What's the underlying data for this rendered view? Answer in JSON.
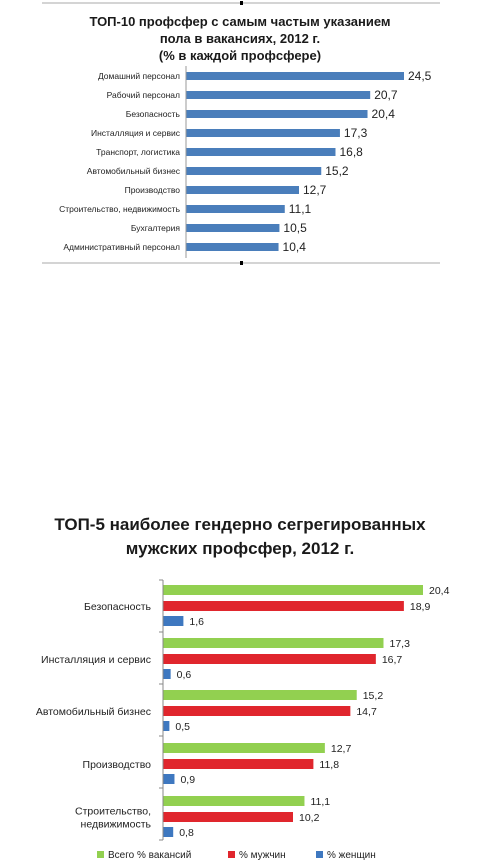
{
  "chart_data": [
    {
      "type": "bar",
      "orientation": "horizontal",
      "title_lines": [
        "ТОП-10 профсфер с самым частым указанием",
        "пола в вакансиях, 2012 г.",
        "(% в каждой профсфере)"
      ],
      "categories": [
        "Домашний персонал",
        "Рабочий персонал",
        "Безопасность",
        "Инсталляция и сервис",
        "Транспорт, логистика",
        "Автомобильный бизнес",
        "Производство",
        "Строительство, недвижимость",
        "Бухгалтерия",
        "Административный персонал"
      ],
      "values": [
        24.5,
        20.7,
        20.4,
        17.3,
        16.8,
        15.2,
        12.7,
        11.1,
        10.5,
        10.4
      ],
      "labels": [
        "24,5",
        "20,7",
        "20,4",
        "17,3",
        "16,8",
        "15,2",
        "12,7",
        "11,1",
        "10,5",
        "10,4"
      ],
      "color": "#4a7ebb",
      "xlim": [
        0,
        24.5
      ],
      "grid": false
    },
    {
      "type": "bar",
      "orientation": "horizontal",
      "title_lines": [
        "ТОП-5 наиболее гендерно сегрегированных",
        "мужских профсфер, 2012 г."
      ],
      "categories": [
        [
          "Безопасность"
        ],
        [
          "Инсталляция и сервис"
        ],
        [
          "Автомобильный бизнес"
        ],
        [
          "Производство"
        ],
        [
          "Строительство,",
          "недвижимость"
        ]
      ],
      "series": [
        {
          "name": "Всего % вакансий",
          "color": "#92d050",
          "values": [
            20.4,
            17.3,
            15.2,
            12.7,
            11.1
          ],
          "labels": [
            "20,4",
            "17,3",
            "15,2",
            "12,7",
            "11,1"
          ]
        },
        {
          "name": "% мужчин",
          "color": "#e0262d",
          "values": [
            18.9,
            16.7,
            14.7,
            11.8,
            10.2
          ],
          "labels": [
            "18,9",
            "16,7",
            "14,7",
            "11,8",
            "10,2"
          ]
        },
        {
          "name": "% женщин",
          "color": "#3e78c0",
          "values": [
            1.6,
            0.6,
            0.5,
            0.9,
            0.8
          ],
          "labels": [
            "1,6",
            "0,6",
            "0,5",
            "0,9",
            "0,8"
          ]
        }
      ],
      "xlim": [
        0,
        20.4
      ],
      "legend": "bottom",
      "grid": false
    }
  ]
}
